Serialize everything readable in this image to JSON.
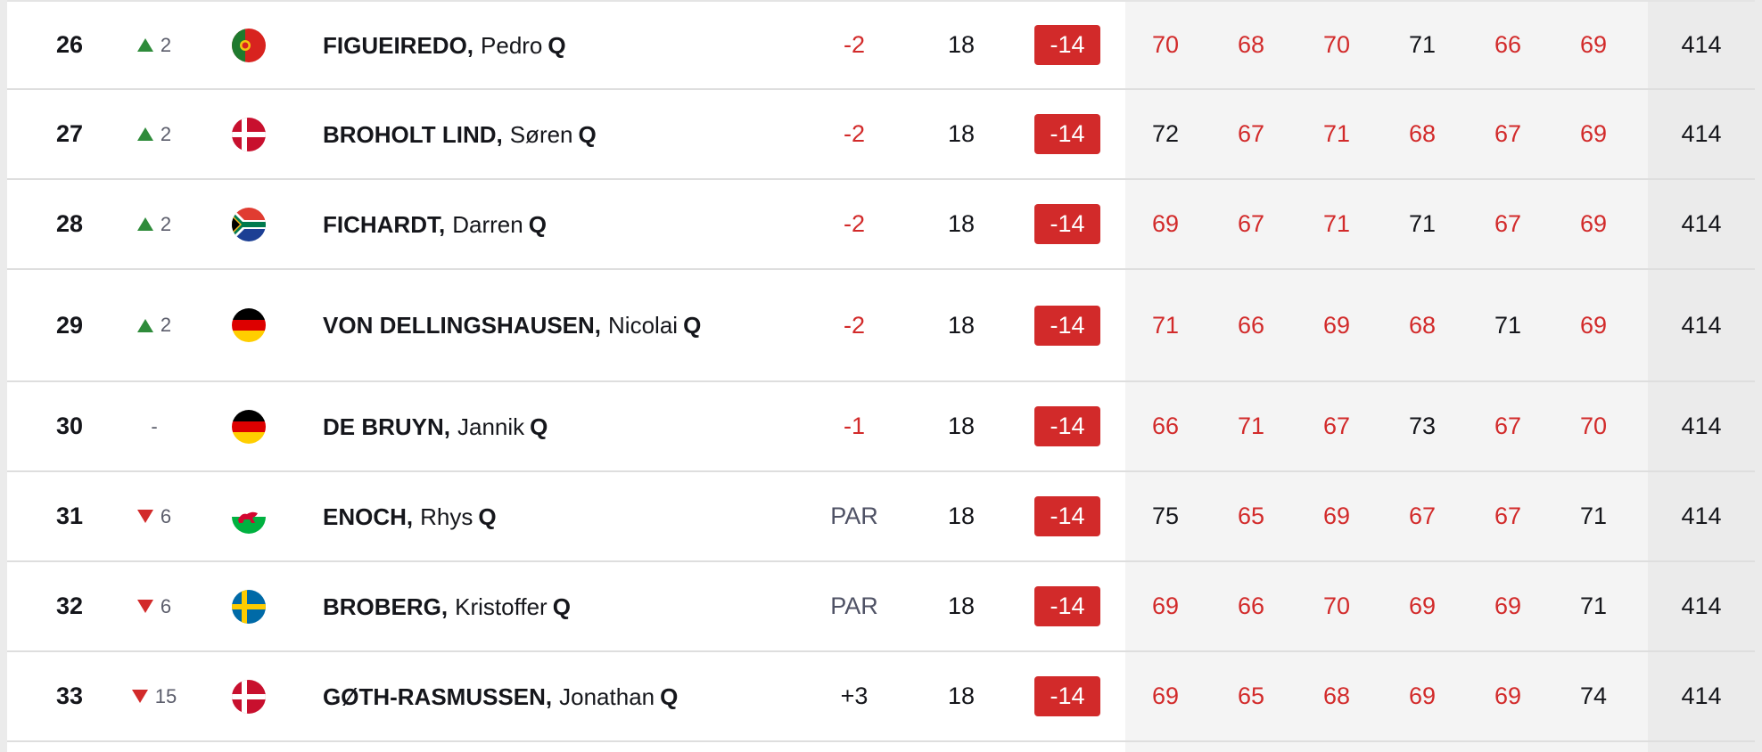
{
  "colors": {
    "under_par": "#d22a2a",
    "even": "#15161b",
    "up_arrow": "#2e8b3a",
    "down_arrow": "#d22a2a",
    "badge_bg": "#d22a2a"
  },
  "rows": [
    {
      "pos": "26",
      "move": "2",
      "move_dir": "up",
      "flag": "portugal-flag-icon",
      "surname": "FIGUEIREDO,",
      "first": "Pedro",
      "q": "Q",
      "today": "-2",
      "today_color": "red",
      "thru": "18",
      "total": "-14",
      "rounds": [
        {
          "v": "70",
          "c": "red"
        },
        {
          "v": "68",
          "c": "red"
        },
        {
          "v": "70",
          "c": "red"
        },
        {
          "v": "71",
          "c": "dark"
        },
        {
          "v": "66",
          "c": "red"
        },
        {
          "v": "69",
          "c": "red"
        }
      ],
      "agg": "414"
    },
    {
      "pos": "27",
      "move": "2",
      "move_dir": "up",
      "flag": "denmark-flag-icon",
      "surname": "BROHOLT LIND,",
      "first": "Søren",
      "q": "Q",
      "today": "-2",
      "today_color": "red",
      "thru": "18",
      "total": "-14",
      "rounds": [
        {
          "v": "72",
          "c": "dark"
        },
        {
          "v": "67",
          "c": "red"
        },
        {
          "v": "71",
          "c": "red"
        },
        {
          "v": "68",
          "c": "red"
        },
        {
          "v": "67",
          "c": "red"
        },
        {
          "v": "69",
          "c": "red"
        }
      ],
      "agg": "414"
    },
    {
      "pos": "28",
      "move": "2",
      "move_dir": "up",
      "flag": "south-africa-flag-icon",
      "surname": "FICHARDT,",
      "first": "Darren",
      "q": "Q",
      "today": "-2",
      "today_color": "red",
      "thru": "18",
      "total": "-14",
      "rounds": [
        {
          "v": "69",
          "c": "red"
        },
        {
          "v": "67",
          "c": "red"
        },
        {
          "v": "71",
          "c": "red"
        },
        {
          "v": "71",
          "c": "dark"
        },
        {
          "v": "67",
          "c": "red"
        },
        {
          "v": "69",
          "c": "red"
        }
      ],
      "agg": "414"
    },
    {
      "pos": "29",
      "move": "2",
      "move_dir": "up",
      "flag": "germany-flag-icon",
      "surname": "VON DELLINGSHAUSEN,",
      "first": "Nicolai",
      "q": "Q",
      "today": "-2",
      "today_color": "red",
      "thru": "18",
      "total": "-14",
      "rounds": [
        {
          "v": "71",
          "c": "red"
        },
        {
          "v": "66",
          "c": "red"
        },
        {
          "v": "69",
          "c": "red"
        },
        {
          "v": "68",
          "c": "red"
        },
        {
          "v": "71",
          "c": "dark"
        },
        {
          "v": "69",
          "c": "red"
        }
      ],
      "agg": "414"
    },
    {
      "pos": "30",
      "move": "-",
      "move_dir": "none",
      "flag": "germany-flag-icon",
      "surname": "DE BRUYN,",
      "first": "Jannik",
      "q": "Q",
      "today": "-1",
      "today_color": "red",
      "thru": "18",
      "total": "-14",
      "rounds": [
        {
          "v": "66",
          "c": "red"
        },
        {
          "v": "71",
          "c": "red"
        },
        {
          "v": "67",
          "c": "red"
        },
        {
          "v": "73",
          "c": "dark"
        },
        {
          "v": "67",
          "c": "red"
        },
        {
          "v": "70",
          "c": "red"
        }
      ],
      "agg": "414"
    },
    {
      "pos": "31",
      "move": "6",
      "move_dir": "down",
      "flag": "wales-flag-icon",
      "surname": "ENOCH,",
      "first": "Rhys",
      "q": "Q",
      "today": "PAR",
      "today_color": "muted",
      "thru": "18",
      "total": "-14",
      "rounds": [
        {
          "v": "75",
          "c": "dark"
        },
        {
          "v": "65",
          "c": "red"
        },
        {
          "v": "69",
          "c": "red"
        },
        {
          "v": "67",
          "c": "red"
        },
        {
          "v": "67",
          "c": "red"
        },
        {
          "v": "71",
          "c": "dark"
        }
      ],
      "agg": "414"
    },
    {
      "pos": "32",
      "move": "6",
      "move_dir": "down",
      "flag": "sweden-flag-icon",
      "surname": "BROBERG,",
      "first": "Kristoffer",
      "q": "Q",
      "today": "PAR",
      "today_color": "muted",
      "thru": "18",
      "total": "-14",
      "rounds": [
        {
          "v": "69",
          "c": "red"
        },
        {
          "v": "66",
          "c": "red"
        },
        {
          "v": "70",
          "c": "red"
        },
        {
          "v": "69",
          "c": "red"
        },
        {
          "v": "69",
          "c": "red"
        },
        {
          "v": "71",
          "c": "dark"
        }
      ],
      "agg": "414"
    },
    {
      "pos": "33",
      "move": "15",
      "move_dir": "down",
      "flag": "denmark-flag-icon",
      "surname": "GØTH-RASMUSSEN,",
      "first": "Jonathan",
      "q": "Q",
      "today": "+3",
      "today_color": "dark",
      "thru": "18",
      "total": "-14",
      "rounds": [
        {
          "v": "69",
          "c": "red"
        },
        {
          "v": "65",
          "c": "red"
        },
        {
          "v": "68",
          "c": "red"
        },
        {
          "v": "69",
          "c": "red"
        },
        {
          "v": "69",
          "c": "red"
        },
        {
          "v": "74",
          "c": "dark"
        }
      ],
      "agg": "414"
    }
  ]
}
